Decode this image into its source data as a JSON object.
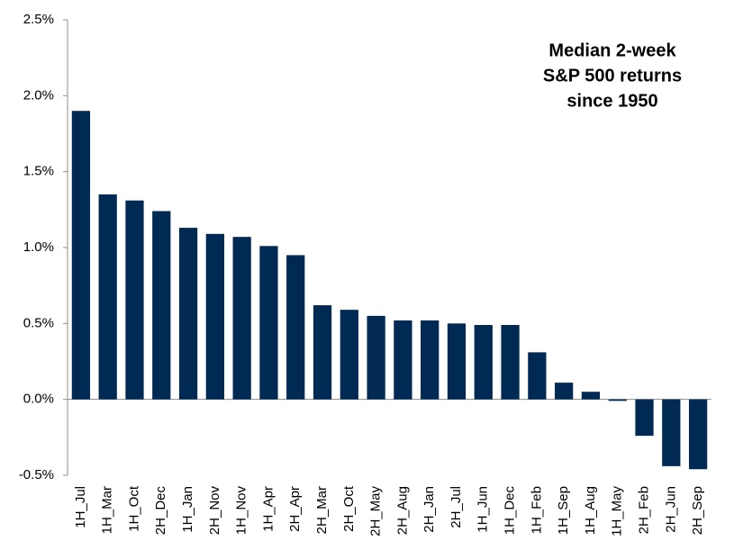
{
  "chart_data": {
    "type": "bar",
    "title": [
      "Median 2-week",
      "S&P 500 returns",
      "since 1950"
    ],
    "categories": [
      "1H_Jul",
      "1H_Mar",
      "1H_Oct",
      "2H_Dec",
      "1H_Jan",
      "2H_Nov",
      "1H_Nov",
      "1H_Apr",
      "2H_Apr",
      "2H_Mar",
      "2H_Oct",
      "2H_May",
      "2H_Aug",
      "2H_Jan",
      "2H_Jul",
      "1H_Jun",
      "1H_Dec",
      "1H_Feb",
      "1H_Sep",
      "1H_Aug",
      "1H_May",
      "2H_Feb",
      "2H_Jun",
      "2H_Sep"
    ],
    "values": [
      1.9,
      1.35,
      1.31,
      1.24,
      1.13,
      1.09,
      1.07,
      1.01,
      0.95,
      0.62,
      0.59,
      0.55,
      0.52,
      0.52,
      0.5,
      0.49,
      0.49,
      0.31,
      0.11,
      0.05,
      -0.01,
      -0.24,
      -0.44,
      -0.46
    ],
    "color": "#002a54",
    "ylim": [
      -0.5,
      2.5
    ],
    "yticks": [
      {
        "value": -0.5,
        "label": "-0.5%"
      },
      {
        "value": 0,
        "label": "0.0%"
      },
      {
        "value": 0.5,
        "label": "0.5%"
      },
      {
        "value": 1,
        "label": "1.0%"
      },
      {
        "value": 1.5,
        "label": "1.5%"
      },
      {
        "value": 2,
        "label": "2.0%"
      },
      {
        "value": 2.5,
        "label": "2.5%"
      }
    ],
    "grid": false
  }
}
